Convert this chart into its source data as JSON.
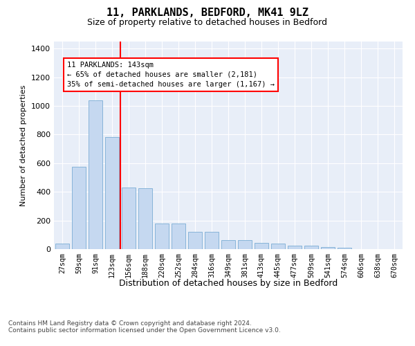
{
  "title1": "11, PARKLANDS, BEDFORD, MK41 9LZ",
  "title2": "Size of property relative to detached houses in Bedford",
  "xlabel": "Distribution of detached houses by size in Bedford",
  "ylabel": "Number of detached properties",
  "categories": [
    "27sqm",
    "59sqm",
    "91sqm",
    "123sqm",
    "156sqm",
    "188sqm",
    "220sqm",
    "252sqm",
    "284sqm",
    "316sqm",
    "349sqm",
    "381sqm",
    "413sqm",
    "445sqm",
    "477sqm",
    "509sqm",
    "541sqm",
    "574sqm",
    "606sqm",
    "638sqm",
    "670sqm"
  ],
  "values": [
    40,
    575,
    1040,
    785,
    430,
    425,
    180,
    180,
    120,
    120,
    65,
    65,
    45,
    40,
    25,
    25,
    15,
    10,
    0,
    0,
    0
  ],
  "bar_color": "#c5d8f0",
  "bar_edge_color": "#7aadd4",
  "vline_color": "red",
  "vline_pos": 3.5,
  "annotation_text": "11 PARKLANDS: 143sqm\n← 65% of detached houses are smaller (2,181)\n35% of semi-detached houses are larger (1,167) →",
  "ylim": [
    0,
    1450
  ],
  "yticks": [
    0,
    200,
    400,
    600,
    800,
    1000,
    1200,
    1400
  ],
  "footer1": "Contains HM Land Registry data © Crown copyright and database right 2024.",
  "footer2": "Contains public sector information licensed under the Open Government Licence v3.0.",
  "plot_background": "#e8eef8"
}
